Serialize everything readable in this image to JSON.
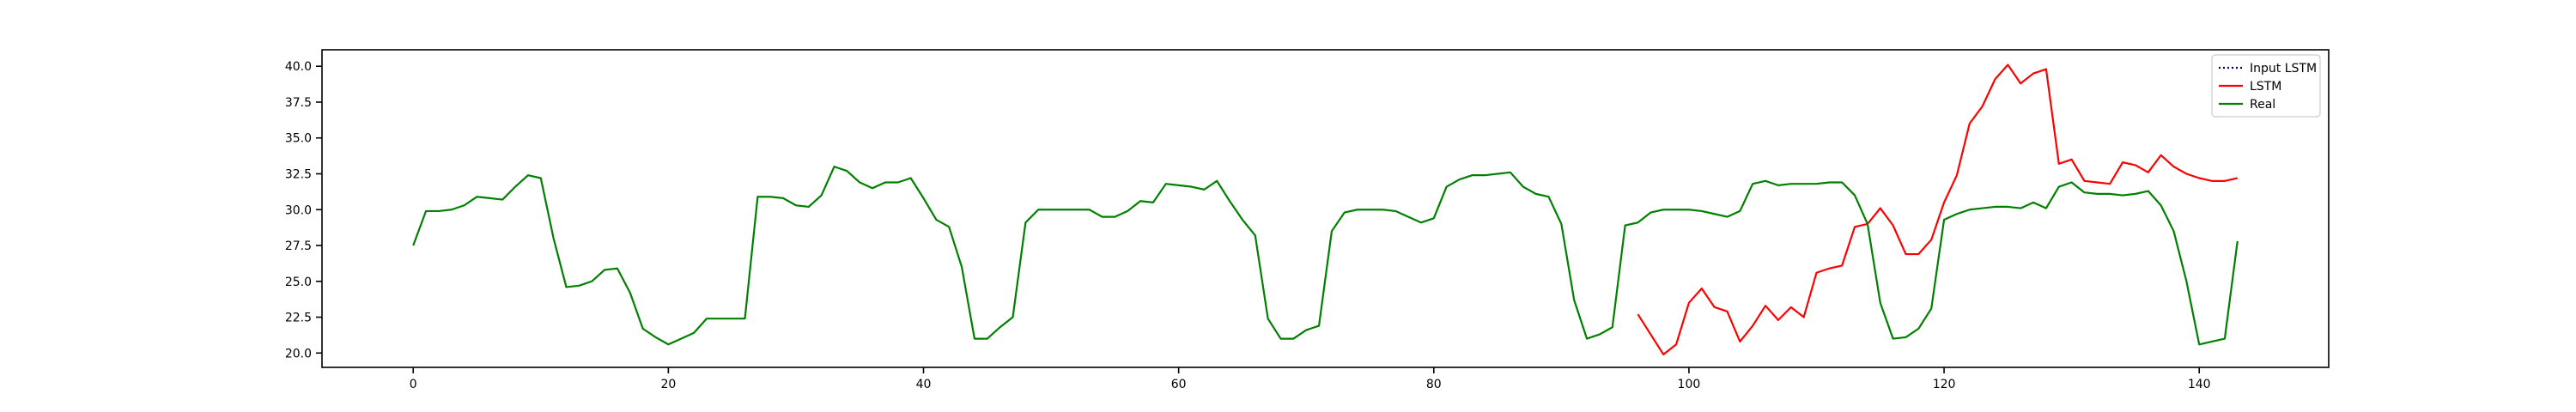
{
  "chart_data": {
    "type": "line",
    "title": "",
    "xlabel": "",
    "ylabel": "",
    "xlim": [
      -7.15,
      150.15
    ],
    "ylim": [
      19.0,
      41.15
    ],
    "grid": false,
    "legend": {
      "placement": "top-right"
    },
    "x_ticks": [
      0,
      20,
      40,
      60,
      80,
      100,
      120,
      140
    ],
    "x_tick_labels": [
      "0",
      "20",
      "40",
      "60",
      "80",
      "100",
      "120",
      "140"
    ],
    "y_ticks": [
      20.0,
      22.5,
      25.0,
      27.5,
      30.0,
      32.5,
      35.0,
      37.5,
      40.0
    ],
    "y_tick_labels": [
      "20.0",
      "22.5",
      "25.0",
      "27.5",
      "30.0",
      "32.5",
      "35.0",
      "37.5",
      "40.0"
    ],
    "series": [
      {
        "name": "Input LSTM",
        "color": "#000080",
        "style": "dotted",
        "x": [],
        "values": []
      },
      {
        "name": "LSTM",
        "color": "#ff0000",
        "style": "solid",
        "x": [
          96,
          97,
          98,
          99,
          100,
          101,
          102,
          103,
          104,
          105,
          106,
          107,
          108,
          109,
          110,
          111,
          112,
          113,
          114,
          115,
          116,
          117,
          118,
          119,
          120,
          121,
          122,
          123,
          124,
          125,
          126,
          127,
          128,
          129,
          130,
          131,
          132,
          133,
          134,
          135,
          136,
          137,
          138,
          139,
          140,
          141,
          142,
          143
        ],
        "values": [
          22.7,
          21.3,
          19.9,
          20.6,
          23.5,
          24.5,
          23.2,
          22.9,
          20.8,
          21.9,
          23.3,
          22.3,
          23.2,
          22.5,
          25.6,
          25.9,
          26.1,
          28.8,
          29.0,
          30.1,
          28.9,
          26.9,
          26.9,
          27.9,
          30.5,
          32.4,
          36.0,
          37.2,
          39.1,
          40.1,
          38.8,
          39.5,
          39.8,
          33.2,
          33.5,
          32.0,
          31.9,
          31.8,
          33.3,
          33.1,
          32.6,
          33.8,
          33.0,
          32.5,
          32.2,
          32.0,
          32.0,
          32.2
        ]
      },
      {
        "name": "Real",
        "color": "#008000",
        "style": "solid",
        "x": [
          0,
          1,
          2,
          3,
          4,
          5,
          6,
          7,
          8,
          9,
          10,
          11,
          12,
          13,
          14,
          15,
          16,
          17,
          18,
          19,
          20,
          21,
          22,
          23,
          24,
          25,
          26,
          27,
          28,
          29,
          30,
          31,
          32,
          33,
          34,
          35,
          36,
          37,
          38,
          39,
          40,
          41,
          42,
          43,
          44,
          45,
          46,
          47,
          48,
          49,
          50,
          51,
          52,
          53,
          54,
          55,
          56,
          57,
          58,
          59,
          60,
          61,
          62,
          63,
          64,
          65,
          66,
          67,
          68,
          69,
          70,
          71,
          72,
          73,
          74,
          75,
          76,
          77,
          78,
          79,
          80,
          81,
          82,
          83,
          84,
          85,
          86,
          87,
          88,
          89,
          90,
          91,
          92,
          93,
          94,
          95,
          96,
          97,
          98,
          99,
          100,
          101,
          102,
          103,
          104,
          105,
          106,
          107,
          108,
          109,
          110,
          111,
          112,
          113,
          114,
          115,
          116,
          117,
          118,
          119,
          120,
          121,
          122,
          123,
          124,
          125,
          126,
          127,
          128,
          129,
          130,
          131,
          132,
          133,
          134,
          135,
          136,
          137,
          138,
          139,
          140,
          141,
          142,
          143
        ],
        "values": [
          27.5,
          29.9,
          29.9,
          30.0,
          30.3,
          30.9,
          30.8,
          30.7,
          31.6,
          32.4,
          32.2,
          28.0,
          24.6,
          24.7,
          25.0,
          25.8,
          25.9,
          24.2,
          21.7,
          21.1,
          20.6,
          21.0,
          21.4,
          22.4,
          22.4,
          22.4,
          22.4,
          30.9,
          30.9,
          30.8,
          30.3,
          30.2,
          31.0,
          33.0,
          32.7,
          31.9,
          31.5,
          31.9,
          31.9,
          32.2,
          30.8,
          29.3,
          28.8,
          26.0,
          21.0,
          21.0,
          21.8,
          22.5,
          29.1,
          30.0,
          30.0,
          30.0,
          30.0,
          30.0,
          29.5,
          29.5,
          29.9,
          30.6,
          30.5,
          31.8,
          31.7,
          31.6,
          31.4,
          32.0,
          30.6,
          29.3,
          28.2,
          22.4,
          21.0,
          21.0,
          21.6,
          21.9,
          28.5,
          29.8,
          30.0,
          30.0,
          30.0,
          29.9,
          29.5,
          29.1,
          29.4,
          31.6,
          32.1,
          32.4,
          32.4,
          32.5,
          32.6,
          31.6,
          31.1,
          30.9,
          29.0,
          23.7,
          21.0,
          21.3,
          21.8,
          28.9,
          29.1,
          29.8,
          30.0,
          30.0,
          30.0,
          29.9,
          29.7,
          29.5,
          29.9,
          31.8,
          32.0,
          31.7,
          31.8,
          31.8,
          31.8,
          31.9,
          31.9,
          31.0,
          29.0,
          23.5,
          21.0,
          21.1,
          21.7,
          23.1,
          29.3,
          29.7,
          30.0,
          30.1,
          30.2,
          30.2,
          30.1,
          30.5,
          30.1,
          31.6,
          31.9,
          31.2,
          31.1,
          31.1,
          31.0,
          31.1,
          31.3,
          30.3,
          28.5,
          25.0,
          20.6,
          20.8,
          21.0,
          27.8
        ]
      }
    ]
  }
}
